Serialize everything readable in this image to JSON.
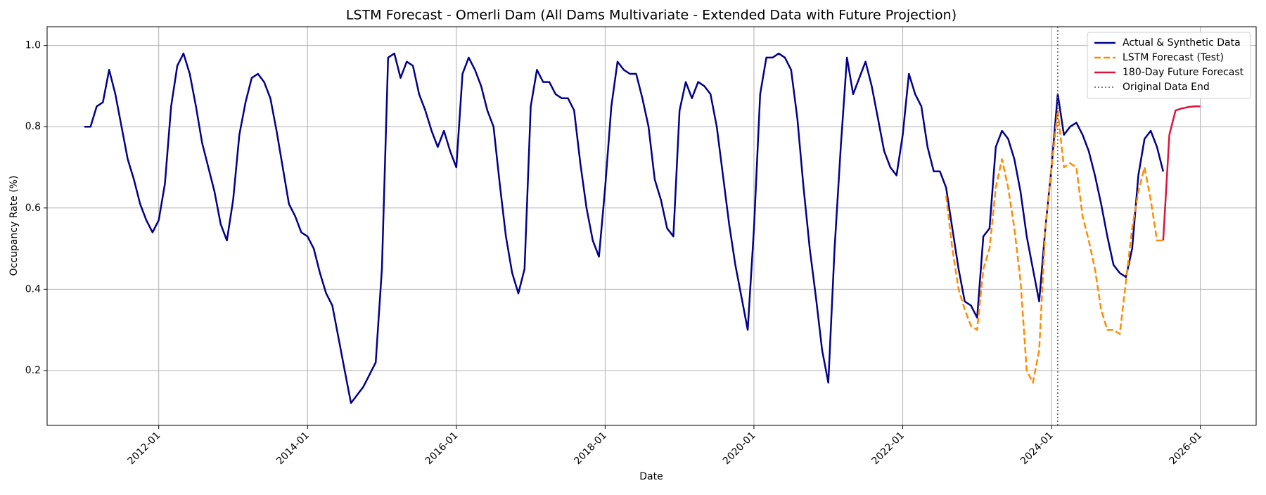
{
  "chart_data": {
    "type": "line",
    "title": "LSTM Forecast - Omerli Dam (All Dams Multivariate - Extended Data with Future Projection)",
    "xlabel": "Date",
    "ylabel": "Occupancy Rate (%)",
    "xlim": [
      "2010-07",
      "2026-10"
    ],
    "xticks": [
      "2012-01",
      "2014-01",
      "2016-01",
      "2018-01",
      "2020-01",
      "2022-01",
      "2024-01",
      "2026-01"
    ],
    "ylim": [
      0.065,
      1.046
    ],
    "yticks": [
      0.2,
      0.4,
      0.6,
      0.8,
      {
        "value": 1,
        "label": "1.0"
      }
    ],
    "grid": true,
    "legend": "upper right",
    "series": [
      {
        "name": "Actual & Synthetic Data",
        "color": "#00008b",
        "style": "solid",
        "x": [
          "2011-01",
          "2011-02",
          "2011-03",
          "2011-04",
          "2011-05",
          "2011-06",
          "2011-07",
          "2011-08",
          "2011-09",
          "2011-10",
          "2011-11",
          "2011-12",
          "2012-01",
          "2012-02",
          "2012-03",
          "2012-04",
          "2012-05",
          "2012-06",
          "2012-07",
          "2012-08",
          "2012-09",
          "2012-10",
          "2012-11",
          "2012-12",
          "2013-01",
          "2013-02",
          "2013-03",
          "2013-04",
          "2013-05",
          "2013-06",
          "2013-07",
          "2013-08",
          "2013-09",
          "2013-10",
          "2013-11",
          "2013-12",
          "2014-01",
          "2014-02",
          "2014-03",
          "2014-04",
          "2014-05",
          "2014-06",
          "2014-07",
          "2014-08",
          "2014-09",
          "2014-10",
          "2014-11",
          "2014-12",
          "2015-01",
          "2015-02",
          "2015-03",
          "2015-04",
          "2015-05",
          "2015-06",
          "2015-07",
          "2015-08",
          "2015-09",
          "2015-10",
          "2015-11",
          "2015-12",
          "2016-01",
          "2016-02",
          "2016-03",
          "2016-04",
          "2016-05",
          "2016-06",
          "2016-07",
          "2016-08",
          "2016-09",
          "2016-10",
          "2016-11",
          "2016-12",
          "2017-01",
          "2017-02",
          "2017-03",
          "2017-04",
          "2017-05",
          "2017-06",
          "2017-07",
          "2017-08",
          "2017-09",
          "2017-10",
          "2017-11",
          "2017-12",
          "2018-01",
          "2018-02",
          "2018-03",
          "2018-04",
          "2018-05",
          "2018-06",
          "2018-07",
          "2018-08",
          "2018-09",
          "2018-10",
          "2018-11",
          "2018-12",
          "2019-01",
          "2019-02",
          "2019-03",
          "2019-04",
          "2019-05",
          "2019-06",
          "2019-07",
          "2019-08",
          "2019-09",
          "2019-10",
          "2019-11",
          "2019-12",
          "2020-01",
          "2020-02",
          "2020-03",
          "2020-04",
          "2020-05",
          "2020-06",
          "2020-07",
          "2020-08",
          "2020-09",
          "2020-10",
          "2020-11",
          "2020-12",
          "2021-01",
          "2021-02",
          "2021-03",
          "2021-04",
          "2021-05",
          "2021-06",
          "2021-07",
          "2021-08",
          "2021-09",
          "2021-10",
          "2021-11",
          "2021-12",
          "2022-01",
          "2022-02",
          "2022-03",
          "2022-04",
          "2022-05",
          "2022-06",
          "2022-07",
          "2022-08",
          "2022-09",
          "2022-10",
          "2022-11",
          "2022-12",
          "2023-01",
          "2023-02",
          "2023-03",
          "2023-04",
          "2023-05",
          "2023-06",
          "2023-07",
          "2023-08",
          "2023-09",
          "2023-10",
          "2023-11",
          "2023-12",
          "2024-01",
          "2024-02",
          "2024-03",
          "2024-04",
          "2024-05",
          "2024-06",
          "2024-07",
          "2024-08",
          "2024-09",
          "2024-10",
          "2024-11",
          "2024-12",
          "2025-01",
          "2025-02",
          "2025-03",
          "2025-04",
          "2025-05",
          "2025-06",
          "2025-07"
        ],
        "values": [
          0.8,
          0.8,
          0.85,
          0.86,
          0.94,
          0.88,
          0.8,
          0.72,
          0.67,
          0.61,
          0.57,
          0.54,
          0.57,
          0.66,
          0.85,
          0.95,
          0.98,
          0.93,
          0.85,
          0.76,
          0.7,
          0.64,
          0.56,
          0.52,
          0.62,
          0.78,
          0.86,
          0.92,
          0.93,
          0.91,
          0.87,
          0.79,
          0.7,
          0.61,
          0.58,
          0.54,
          0.53,
          0.5,
          0.44,
          0.39,
          0.36,
          0.28,
          0.2,
          0.12,
          0.14,
          0.16,
          0.19,
          0.22,
          0.45,
          0.97,
          0.98,
          0.92,
          0.96,
          0.95,
          0.88,
          0.84,
          0.79,
          0.75,
          0.79,
          0.74,
          0.7,
          0.93,
          0.97,
          0.94,
          0.9,
          0.84,
          0.8,
          0.66,
          0.53,
          0.44,
          0.39,
          0.45,
          0.85,
          0.94,
          0.91,
          0.91,
          0.88,
          0.87,
          0.87,
          0.84,
          0.71,
          0.6,
          0.52,
          0.48,
          0.65,
          0.85,
          0.96,
          0.94,
          0.93,
          0.93,
          0.87,
          0.8,
          0.67,
          0.62,
          0.55,
          0.53,
          0.84,
          0.91,
          0.87,
          0.91,
          0.9,
          0.88,
          0.8,
          0.68,
          0.56,
          0.46,
          0.38,
          0.3,
          0.55,
          0.88,
          0.97,
          0.97,
          0.98,
          0.97,
          0.94,
          0.82,
          0.65,
          0.5,
          0.38,
          0.25,
          0.17,
          0.5,
          0.75,
          0.97,
          0.88,
          0.92,
          0.96,
          0.9,
          0.82,
          0.74,
          0.7,
          0.68,
          0.78,
          0.93,
          0.88,
          0.85,
          0.75,
          0.69,
          0.69,
          0.65,
          0.55,
          0.45,
          0.37,
          0.36,
          0.33,
          0.53,
          0.55,
          0.75,
          0.79,
          0.77,
          0.72,
          0.64,
          0.53,
          0.45,
          0.37,
          0.55,
          0.7,
          0.88,
          0.78,
          0.8,
          0.81,
          0.78,
          0.74,
          0.68,
          0.61,
          0.53,
          0.46,
          0.44,
          0.43,
          0.5,
          0.68,
          0.77,
          0.79,
          0.75,
          0.69
        ]
      },
      {
        "name": "LSTM Forecast (Test)",
        "color": "#ff8c00",
        "style": "dashed",
        "x": [
          "2022-08",
          "2022-09",
          "2022-10",
          "2022-11",
          "2022-12",
          "2023-01",
          "2023-02",
          "2023-03",
          "2023-04",
          "2023-05",
          "2023-06",
          "2023-07",
          "2023-08",
          "2023-09",
          "2023-10",
          "2023-11",
          "2023-12",
          "2024-01",
          "2024-02",
          "2024-03",
          "2024-04",
          "2024-05",
          "2024-06",
          "2024-07",
          "2024-08",
          "2024-09",
          "2024-10",
          "2024-11",
          "2024-12",
          "2025-01",
          "2025-02",
          "2025-03",
          "2025-04",
          "2025-05",
          "2025-06",
          "2025-07"
        ],
        "values": [
          0.63,
          0.5,
          0.4,
          0.35,
          0.31,
          0.3,
          0.45,
          0.5,
          0.65,
          0.72,
          0.65,
          0.55,
          0.42,
          0.2,
          0.17,
          0.25,
          0.55,
          0.7,
          0.84,
          0.7,
          0.71,
          0.7,
          0.58,
          0.52,
          0.45,
          0.35,
          0.3,
          0.3,
          0.29,
          0.42,
          0.55,
          0.64,
          0.7,
          0.62,
          0.52,
          0.52
        ]
      },
      {
        "name": "180-Day Future Forecast",
        "color": "#dc143c",
        "style": "solid",
        "x": [
          "2025-07",
          "2025-08",
          "2025-09",
          "2025-10",
          "2025-11",
          "2025-12",
          "2026-01"
        ],
        "values": [
          0.52,
          0.78,
          0.84,
          0.845,
          0.848,
          0.85,
          0.85
        ]
      }
    ],
    "vline": {
      "name": "Original Data End",
      "x": "2024-02",
      "color": "#555555"
    }
  }
}
